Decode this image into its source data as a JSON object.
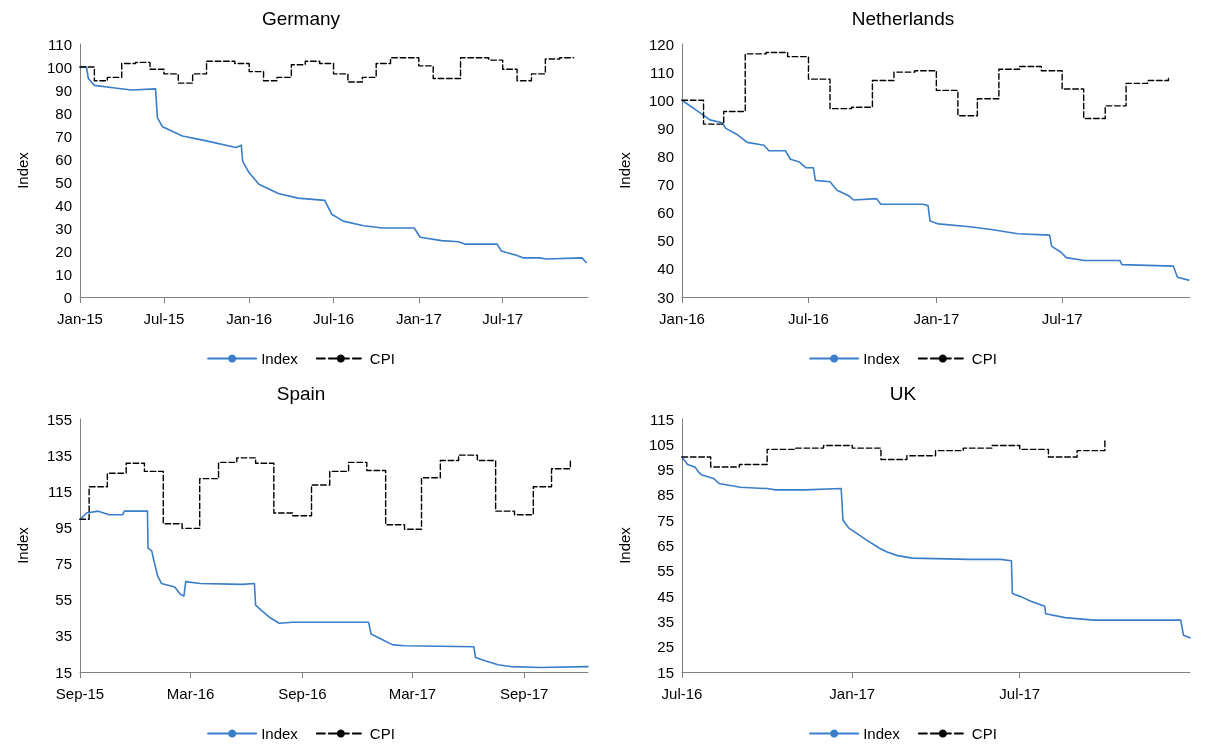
{
  "chart_data": [
    {
      "type": "line",
      "title": "Germany",
      "ylabel": "Index",
      "legend": "bottom",
      "ylim": [
        0,
        110
      ],
      "yticks": [
        0,
        10,
        20,
        30,
        40,
        50,
        60,
        70,
        80,
        90,
        100,
        110
      ],
      "xlim": [
        "2015-01-01",
        "2018-01-01"
      ],
      "xticks": [
        {
          "value": "2015-01-01",
          "label": "Jan-15"
        },
        {
          "value": "2015-07-01",
          "label": "Jul-15"
        },
        {
          "value": "2016-01-01",
          "label": "Jan-16"
        },
        {
          "value": "2016-07-01",
          "label": "Jul-16"
        },
        {
          "value": "2017-01-01",
          "label": "Jan-17"
        },
        {
          "value": "2017-07-01",
          "label": "Jul-17"
        }
      ],
      "series": [
        {
          "name": "Index",
          "color": "#3a7dc9",
          "line_style": "solid",
          "x": [
            "2015-01-01",
            "2015-01-15",
            "2015-01-19",
            "2015-02-01",
            "2015-03-13",
            "2015-04-22",
            "2015-06-13",
            "2015-06-17",
            "2015-06-28",
            "2015-08-10",
            "2015-09-28",
            "2015-12-04",
            "2015-12-15",
            "2015-12-18",
            "2016-01-01",
            "2016-01-22",
            "2016-03-04",
            "2016-04-15",
            "2016-06-12",
            "2016-06-27",
            "2016-07-22",
            "2016-09-04",
            "2016-10-15",
            "2016-12-22",
            "2017-01-04",
            "2017-02-19",
            "2017-03-28",
            "2017-04-10",
            "2017-06-19",
            "2017-06-28",
            "2017-08-01",
            "2017-08-15",
            "2017-09-19",
            "2017-10-03",
            "2017-12-19",
            "2017-12-28"
          ],
          "values": [
            100,
            100,
            95,
            92,
            91,
            90,
            90.5,
            78,
            74,
            70,
            68,
            65,
            66,
            59,
            54,
            49,
            45,
            43,
            42,
            36,
            33,
            31,
            30,
            30,
            26,
            24.5,
            24,
            23,
            23,
            20,
            18,
            17,
            17,
            16.5,
            17,
            15
          ]
        },
        {
          "name": "CPI",
          "type": "step",
          "color": "#000000",
          "line_style": "dashed",
          "x": [
            "2015-01-01",
            "2015-02-01",
            "2015-03-01",
            "2015-04-01",
            "2015-05-01",
            "2015-06-01",
            "2015-07-01",
            "2015-08-01",
            "2015-09-01",
            "2015-10-01",
            "2015-12-01",
            "2016-01-01",
            "2016-02-01",
            "2016-03-01",
            "2016-04-01",
            "2016-05-01",
            "2016-06-01",
            "2016-07-01",
            "2016-08-01",
            "2016-09-01",
            "2016-10-01",
            "2016-11-01",
            "2017-01-01",
            "2017-02-01",
            "2017-04-01",
            "2017-06-01",
            "2017-07-01",
            "2017-08-01",
            "2017-09-01",
            "2017-10-01",
            "2017-11-01",
            "2017-12-01"
          ],
          "values": [
            100,
            94,
            95.5,
            101.5,
            102,
            99,
            97,
            93,
            97,
            102.5,
            101.5,
            98,
            94,
            95.5,
            101,
            102.5,
            101.5,
            97,
            93.5,
            95.5,
            101.5,
            104,
            100.5,
            95,
            104,
            103,
            99,
            94,
            97,
            103.5,
            104,
            104
          ]
        }
      ]
    },
    {
      "type": "line",
      "title": "Netherlands",
      "ylabel": "Index",
      "legend": "bottom",
      "ylim": [
        30,
        120
      ],
      "yticks": [
        30,
        40,
        50,
        60,
        70,
        80,
        90,
        100,
        110,
        120
      ],
      "xlim": [
        "2016-01-01",
        "2018-01-01"
      ],
      "xticks": [
        {
          "value": "2016-01-01",
          "label": "Jan-16"
        },
        {
          "value": "2016-07-01",
          "label": "Jul-16"
        },
        {
          "value": "2017-01-01",
          "label": "Jan-17"
        },
        {
          "value": "2017-07-01",
          "label": "Jul-17"
        }
      ],
      "series": [
        {
          "name": "Index",
          "color": "#3a7dc9",
          "line_style": "solid",
          "x": [
            "2016-01-01",
            "2016-01-24",
            "2016-02-10",
            "2016-02-28",
            "2016-03-04",
            "2016-03-19",
            "2016-04-04",
            "2016-04-28",
            "2016-05-05",
            "2016-05-29",
            "2016-06-05",
            "2016-06-18",
            "2016-06-27",
            "2016-07-08",
            "2016-07-11",
            "2016-08-01",
            "2016-08-11",
            "2016-08-28",
            "2016-09-04",
            "2016-10-07",
            "2016-10-13",
            "2016-12-13",
            "2016-12-20",
            "2016-12-23",
            "2017-01-04",
            "2017-02-18",
            "2017-03-21",
            "2017-04-28",
            "2017-06-13",
            "2017-06-16",
            "2017-06-29",
            "2017-07-07",
            "2017-08-02",
            "2017-09-22",
            "2017-09-25",
            "2017-12-08",
            "2017-12-11",
            "2017-12-14",
            "2017-12-30"
          ],
          "values": [
            100,
            96,
            93,
            92,
            90,
            88,
            85,
            84,
            82,
            82,
            79,
            78,
            76,
            76,
            71.5,
            71,
            68,
            66,
            64.5,
            65,
            63,
            63,
            62.5,
            57,
            56,
            55,
            54,
            52.5,
            52,
            48,
            46,
            44,
            43,
            43,
            41.5,
            41,
            39,
            37,
            36
          ]
        },
        {
          "name": "CPI",
          "type": "step",
          "color": "#000000",
          "line_style": "dashed",
          "x": [
            "2016-01-01",
            "2016-02-01",
            "2016-03-01",
            "2016-04-01",
            "2016-05-01",
            "2016-06-01",
            "2016-07-01",
            "2016-08-01",
            "2016-09-01",
            "2016-10-01",
            "2016-11-01",
            "2016-12-01",
            "2017-01-01",
            "2017-02-01",
            "2017-03-01",
            "2017-04-01",
            "2017-05-01",
            "2017-06-01",
            "2017-07-01",
            "2017-08-01",
            "2017-09-01",
            "2017-10-01",
            "2017-11-01",
            "2017-12-01"
          ],
          "values": [
            100,
            91.5,
            96,
            116.5,
            117,
            115.5,
            107.5,
            97,
            97.5,
            107,
            110,
            110.5,
            103.5,
            94.5,
            100.5,
            111,
            112,
            110.5,
            104,
            93.5,
            98,
            106,
            107,
            108
          ]
        }
      ]
    },
    {
      "type": "line",
      "title": "Spain",
      "ylabel": "Index",
      "legend": "bottom",
      "ylim": [
        15,
        155
      ],
      "yticks": [
        15,
        35,
        55,
        75,
        95,
        115,
        135,
        155
      ],
      "xlim": [
        "2015-09-01",
        "2017-12-15"
      ],
      "xticks": [
        {
          "value": "2015-09-01",
          "label": "Sep-15"
        },
        {
          "value": "2016-03-01",
          "label": "Mar-16"
        },
        {
          "value": "2016-09-01",
          "label": "Sep-16"
        },
        {
          "value": "2017-03-01",
          "label": "Mar-17"
        },
        {
          "value": "2017-09-01",
          "label": "Sep-17"
        }
      ],
      "series": [
        {
          "name": "Index",
          "color": "#3a7dc9",
          "line_style": "solid",
          "x": [
            "2015-09-01",
            "2015-09-12",
            "2015-10-01",
            "2015-10-19",
            "2015-11-10",
            "2015-11-13",
            "2015-12-21",
            "2015-12-22",
            "2015-12-28",
            "2016-01-01",
            "2016-01-07",
            "2016-01-13",
            "2016-02-04",
            "2016-02-13",
            "2016-02-19",
            "2016-02-22",
            "2016-03-17",
            "2016-05-25",
            "2016-06-14",
            "2016-06-16",
            "2016-06-26",
            "2016-07-10",
            "2016-07-25",
            "2016-08-16",
            "2016-12-19",
            "2016-12-23",
            "2017-01-10",
            "2017-01-28",
            "2017-02-16",
            "2017-06-10",
            "2017-06-13",
            "2017-07-01",
            "2017-07-20",
            "2017-08-10",
            "2017-09-28",
            "2017-12-15"
          ],
          "values": [
            99.5,
            103,
            104,
            102,
            102,
            104,
            104,
            83.5,
            82,
            76,
            68,
            64,
            62,
            58,
            57,
            65,
            64,
            63.5,
            64,
            52,
            49,
            45,
            42,
            42.5,
            42.5,
            36,
            33,
            30,
            29.5,
            29,
            23,
            21,
            19,
            18,
            17.5,
            18
          ]
        },
        {
          "name": "CPI",
          "type": "step",
          "color": "#000000",
          "line_style": "dashed",
          "x": [
            "2015-09-01",
            "2015-09-16",
            "2015-10-16",
            "2015-11-16",
            "2015-12-16",
            "2016-01-16",
            "2016-02-16",
            "2016-03-16",
            "2016-04-16",
            "2016-05-16",
            "2016-06-16",
            "2016-07-16",
            "2016-08-16",
            "2016-09-16",
            "2016-10-16",
            "2016-11-16",
            "2016-12-16",
            "2017-01-16",
            "2017-02-16",
            "2017-03-16",
            "2017-04-16",
            "2017-05-16",
            "2017-06-16",
            "2017-07-16",
            "2017-08-16",
            "2017-09-16",
            "2017-10-16",
            "2017-11-16"
          ],
          "values": [
            99.5,
            117.5,
            125,
            130.5,
            126,
            97,
            94.5,
            122,
            131,
            133.5,
            130.5,
            103,
            101.5,
            118.5,
            126,
            131,
            126.5,
            96.5,
            94,
            122.5,
            132,
            135,
            132,
            104,
            102,
            117.5,
            127.5,
            133
          ]
        }
      ]
    },
    {
      "type": "line",
      "title": "UK",
      "ylabel": "Index",
      "legend": "bottom",
      "ylim": [
        15,
        115
      ],
      "yticks": [
        15,
        25,
        35,
        45,
        55,
        65,
        75,
        85,
        95,
        105,
        115
      ],
      "xlim": [
        "2016-07-01",
        "2018-01-01"
      ],
      "xticks": [
        {
          "value": "2016-07-01",
          "label": "Jul-16"
        },
        {
          "value": "2017-01-01",
          "label": "Jan-17"
        },
        {
          "value": "2017-07-01",
          "label": "Jul-17"
        }
      ],
      "series": [
        {
          "name": "Index",
          "color": "#3a7dc9",
          "line_style": "solid",
          "x": [
            "2016-07-01",
            "2016-07-07",
            "2016-07-15",
            "2016-07-19",
            "2016-07-22",
            "2016-08-04",
            "2016-08-10",
            "2016-09-02",
            "2016-10-01",
            "2016-10-10",
            "2016-11-11",
            "2016-12-20",
            "2016-12-22",
            "2016-12-28",
            "2017-01-05",
            "2017-01-17",
            "2017-01-30",
            "2017-02-07",
            "2017-02-19",
            "2017-03-07",
            "2017-05-07",
            "2017-06-10",
            "2017-06-22",
            "2017-06-23",
            "2017-07-04",
            "2017-07-13",
            "2017-07-28",
            "2017-07-29",
            "2017-08-19",
            "2017-09-19",
            "2017-12-22",
            "2017-12-25",
            "2018-01-01"
          ],
          "values": [
            100,
            97,
            96,
            94,
            93,
            91.5,
            89.5,
            88,
            87.5,
            87,
            87,
            87.5,
            75,
            72,
            70,
            67,
            64,
            62.5,
            61,
            60,
            59.5,
            59.5,
            59,
            46,
            44.5,
            43,
            41,
            38,
            36.5,
            35.5,
            35.5,
            29.5,
            28.5
          ]
        },
        {
          "name": "CPI",
          "type": "step",
          "color": "#000000",
          "line_style": "dashed",
          "x": [
            "2016-07-01",
            "2016-08-01",
            "2016-09-01",
            "2016-10-01",
            "2016-11-01",
            "2016-12-01",
            "2017-01-01",
            "2017-02-01",
            "2017-03-01",
            "2017-04-01",
            "2017-05-01",
            "2017-06-01",
            "2017-07-01",
            "2017-08-01",
            "2017-09-01",
            "2017-10-01"
          ],
          "values": [
            100,
            96,
            97,
            103,
            103.5,
            104.5,
            103.5,
            99,
            100.5,
            102.5,
            103.5,
            104.5,
            103,
            100,
            102.5,
            107
          ]
        }
      ]
    }
  ]
}
